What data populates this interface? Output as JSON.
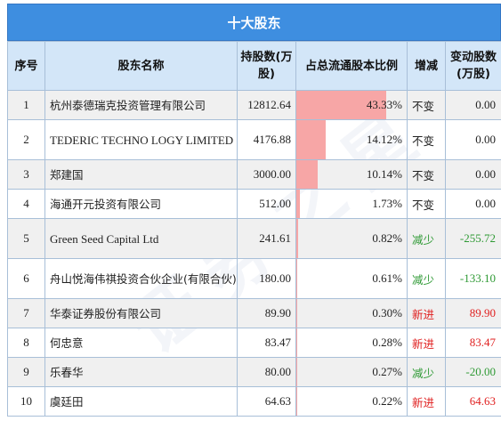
{
  "title": "十大股东",
  "headers": {
    "index": "序号",
    "name": "股东名称",
    "shares": "持股数(万股)",
    "ratio": "占总流通股本比例",
    "change": "增减",
    "delta": "变动股数(万股)"
  },
  "watermark": "证券之星",
  "rows": [
    {
      "index": "1",
      "name": "杭州泰德瑞克投资管理有限公司",
      "shares": "12812.64",
      "ratio": "43.33%",
      "ratio_value": 43.33,
      "change": "不变",
      "delta": "0.00",
      "status": "unchanged"
    },
    {
      "index": "2",
      "name": "TEDERIC TECHNO LOGY LIMITED",
      "shares": "4176.88",
      "ratio": "14.12%",
      "ratio_value": 14.12,
      "change": "不变",
      "delta": "0.00",
      "status": "unchanged"
    },
    {
      "index": "3",
      "name": "郑建国",
      "shares": "3000.00",
      "ratio": "10.14%",
      "ratio_value": 10.14,
      "change": "不变",
      "delta": "0.00",
      "status": "unchanged"
    },
    {
      "index": "4",
      "name": "海通开元投资有限公司",
      "shares": "512.00",
      "ratio": "1.73%",
      "ratio_value": 1.73,
      "change": "不变",
      "delta": "0.00",
      "status": "unchanged"
    },
    {
      "index": "5",
      "name": "Green Seed Capital Ltd",
      "shares": "241.61",
      "ratio": "0.82%",
      "ratio_value": 0.82,
      "change": "减少",
      "delta": "-255.72",
      "status": "decrease"
    },
    {
      "index": "6",
      "name": "舟山悦海伟祺投资合伙企业(有限合伙)",
      "shares": "180.00",
      "ratio": "0.61%",
      "ratio_value": 0.61,
      "change": "减少",
      "delta": "-133.10",
      "status": "decrease"
    },
    {
      "index": "7",
      "name": "华泰证券股份有限公司",
      "shares": "89.90",
      "ratio": "0.30%",
      "ratio_value": 0.3,
      "change": "新进",
      "delta": "89.90",
      "status": "new"
    },
    {
      "index": "8",
      "name": "何忠意",
      "shares": "83.47",
      "ratio": "0.28%",
      "ratio_value": 0.28,
      "change": "新进",
      "delta": "83.47",
      "status": "new"
    },
    {
      "index": "9",
      "name": "乐春华",
      "shares": "80.00",
      "ratio": "0.27%",
      "ratio_value": 0.27,
      "change": "减少",
      "delta": "-20.00",
      "status": "decrease"
    },
    {
      "index": "10",
      "name": "虞廷田",
      "shares": "64.63",
      "ratio": "0.22%",
      "ratio_value": 0.22,
      "change": "新进",
      "delta": "64.63",
      "status": "new"
    }
  ],
  "colors": {
    "header_bar": "#3e8ee0",
    "column_header_bg": "#d3e6f8",
    "ratio_bar": "#f7a6a6",
    "new": "#e02020",
    "decrease": "#2f9a35",
    "unchanged": "#222222"
  }
}
